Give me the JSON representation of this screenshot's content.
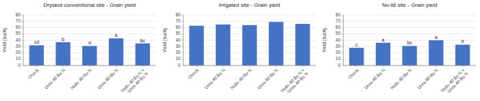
{
  "chart_data": [
    {
      "type": "bar",
      "title": "Dryland conventional site - Grain yield",
      "ylabel": "Yield (bu/A)",
      "categories": [
        "Check",
        "Urea 40 Bu N",
        "Hullo 40 Bu N",
        "Urea 80 Bu N",
        "Hullo 40 Bu N +\nUrea 40 Bu N"
      ],
      "values": [
        32,
        37,
        31,
        43,
        35
      ],
      "annotations": [
        "cd",
        "b",
        "d",
        "a",
        "bc"
      ],
      "color": "#4472C4",
      "ylim": [
        0,
        80
      ],
      "yticks": [
        0,
        10,
        20,
        30,
        40,
        50,
        60,
        70,
        80
      ],
      "grid": true
    },
    {
      "type": "bar",
      "title": "Irrigated site - Grain yield",
      "ylabel": "Yield (bu/A)",
      "categories": [
        "Check",
        "Urea 40 Bu N",
        "Hullo 40 Bu N",
        "Urea 80 Bu N",
        "Hullo 40 Bu N +\nUrea 40 Bu N"
      ],
      "values": [
        63,
        65,
        64,
        69,
        66
      ],
      "color": "#4472C4",
      "ylim": [
        0,
        80
      ],
      "yticks": [
        0,
        10,
        20,
        30,
        40,
        50,
        60,
        70,
        80
      ],
      "grid": true
    },
    {
      "type": "bar",
      "title": "No-till site - Grain yield",
      "ylabel": "Yield (bu/A)",
      "categories": [
        "Check",
        "Urea 40 Bu N",
        "Hullo 40 Bu N",
        "Urea 80 Bu N",
        "Hullo 40 Bu N +\nUrea 40 Bu N"
      ],
      "values": [
        28,
        36,
        31,
        40,
        33
      ],
      "annotations": [
        "c",
        "a",
        "bc",
        "a",
        "b"
      ],
      "color": "#4472C4",
      "ylim": [
        0,
        80
      ],
      "yticks": [
        0,
        10,
        20,
        30,
        40,
        50,
        60,
        70,
        80
      ],
      "grid": true
    }
  ]
}
